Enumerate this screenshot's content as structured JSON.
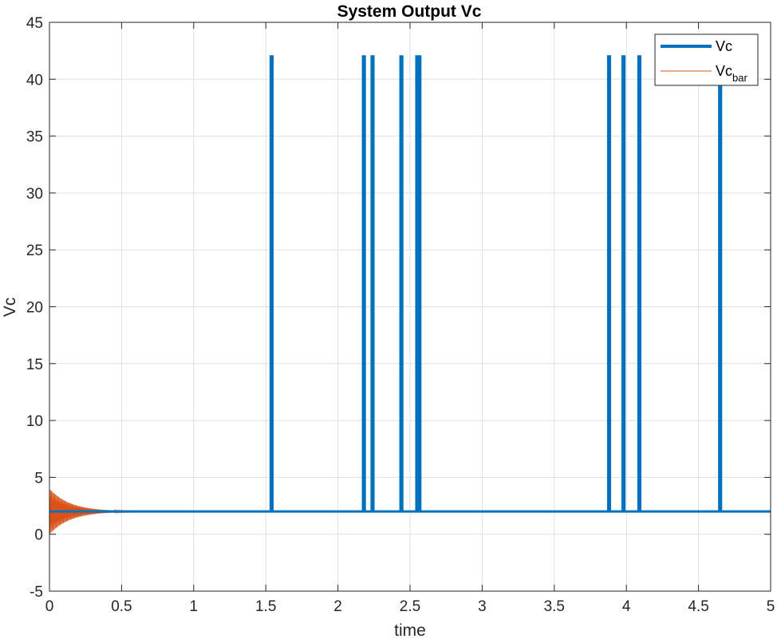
{
  "chart_data": {
    "type": "line",
    "title": "System Output Vc",
    "xlabel": "time",
    "ylabel": "Vc",
    "xlim": [
      0,
      5
    ],
    "ylim": [
      -5,
      45
    ],
    "x_ticks": [
      0,
      0.5,
      1,
      1.5,
      2,
      2.5,
      3,
      3.5,
      4,
      4.5,
      5
    ],
    "x_tick_labels": [
      "0",
      "0.5",
      "1",
      "1.5",
      "2",
      "2.5",
      "3",
      "3.5",
      "4",
      "4.5",
      "5"
    ],
    "y_ticks": [
      -5,
      0,
      5,
      10,
      15,
      20,
      25,
      30,
      35,
      40,
      45
    ],
    "y_tick_labels": [
      "-5",
      "0",
      "5",
      "10",
      "15",
      "20",
      "25",
      "30",
      "35",
      "40",
      "45"
    ],
    "grid": true,
    "legend_position": "top-right",
    "series": [
      {
        "name": "Vc",
        "color": "#0072BD",
        "style": "thick-line",
        "baseline": 2,
        "spike_peak": 42,
        "spike_times": [
          1.54,
          2.18,
          2.24,
          2.44,
          2.55,
          2.565,
          3.88,
          3.98,
          4.09,
          4.65
        ]
      },
      {
        "name": "Vc",
        "name_subscript": "bar",
        "color": "#D95319",
        "style": "thin-oscillation",
        "center": 2,
        "initial_envelope": 2,
        "decay_rate": 7.0,
        "oscillation_end": 0.8
      }
    ]
  }
}
